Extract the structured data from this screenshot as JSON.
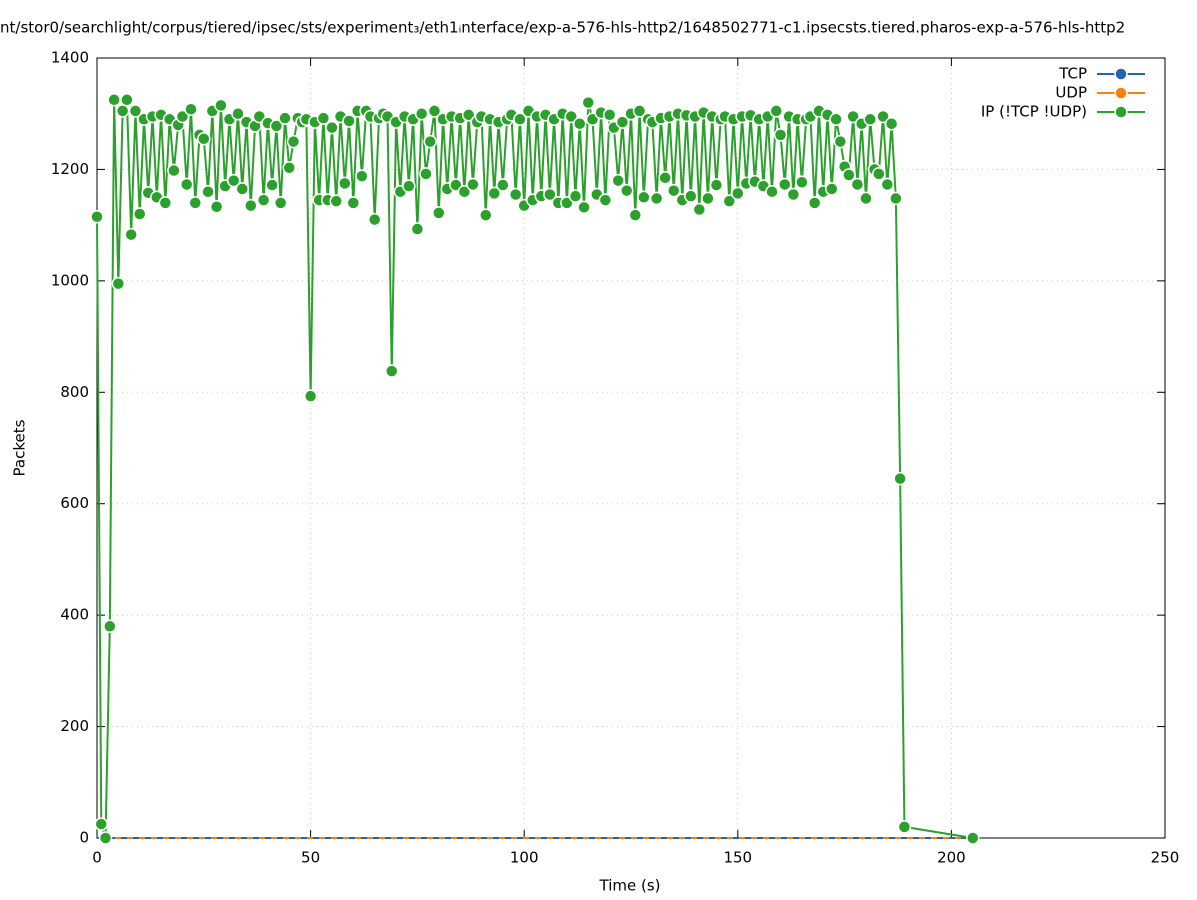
{
  "chart_data": {
    "type": "line",
    "title": "nt/stor0/searchlight/corpus/tiered/ipsec/sts/experiment₃/eth1ᵢnterface/exp-a-576-hls-http2/1648502771-c1.ipsecsts.tiered.pharos-exp-a-576-hls-http2",
    "x_label": "Time (s)",
    "y_label": "Packets",
    "xlim": [
      0,
      250
    ],
    "xticks": [
      0,
      50,
      100,
      150,
      200,
      250
    ],
    "ylim": [
      0,
      1400
    ],
    "yticks": [
      0,
      200,
      400,
      600,
      800,
      1000,
      1200,
      1400
    ],
    "grid": true,
    "legend": "top-right",
    "x": [
      0,
      1,
      2,
      3,
      4,
      5,
      6,
      7,
      8,
      9,
      10,
      11,
      12,
      13,
      14,
      15,
      16,
      17,
      18,
      19,
      20,
      21,
      22,
      23,
      24,
      25,
      26,
      27,
      28,
      29,
      30,
      31,
      32,
      33,
      34,
      35,
      36,
      37,
      38,
      39,
      40,
      41,
      42,
      43,
      44,
      45,
      46,
      47,
      48,
      49,
      50,
      51,
      52,
      53,
      54,
      55,
      56,
      57,
      58,
      59,
      60,
      61,
      62,
      63,
      64,
      65,
      66,
      67,
      68,
      69,
      70,
      71,
      72,
      73,
      74,
      75,
      76,
      77,
      78,
      79,
      80,
      81,
      82,
      83,
      84,
      85,
      86,
      87,
      88,
      89,
      90,
      91,
      92,
      93,
      94,
      95,
      96,
      97,
      98,
      99,
      100,
      101,
      102,
      103,
      104,
      105,
      106,
      107,
      108,
      109,
      110,
      111,
      112,
      113,
      114,
      115,
      116,
      117,
      118,
      119,
      120,
      121,
      122,
      123,
      124,
      125,
      126,
      127,
      128,
      129,
      130,
      131,
      132,
      133,
      134,
      135,
      136,
      137,
      138,
      139,
      140,
      141,
      142,
      143,
      144,
      145,
      146,
      147,
      148,
      149,
      150,
      151,
      152,
      153,
      154,
      155,
      156,
      157,
      158,
      159,
      160,
      161,
      162,
      163,
      164,
      165,
      166,
      167,
      168,
      169,
      170,
      171,
      172,
      173,
      174,
      175,
      176,
      177,
      178,
      179,
      180,
      181,
      182,
      183,
      184,
      185,
      186,
      187,
      188,
      189,
      205
    ],
    "series": [
      {
        "name": "TCP",
        "color": "#1f65b0",
        "values": [
          0,
          0,
          0,
          0,
          0,
          0,
          0,
          0,
          0,
          0,
          0,
          0,
          0,
          0,
          0,
          0,
          0,
          0,
          0,
          0,
          0,
          0,
          0,
          0,
          0,
          0,
          0,
          0,
          0,
          0,
          0,
          0,
          0,
          0,
          0,
          0,
          0,
          0,
          0,
          0,
          0,
          0,
          0,
          0,
          0,
          0,
          0,
          0,
          0,
          0,
          0,
          0,
          0,
          0,
          0,
          0,
          0,
          0,
          0,
          0,
          0,
          0,
          0,
          0,
          0,
          0,
          0,
          0,
          0,
          0,
          0,
          0,
          0,
          0,
          0,
          0,
          0,
          0,
          0,
          0,
          0,
          0,
          0,
          0,
          0,
          0,
          0,
          0,
          0,
          0,
          0,
          0,
          0,
          0,
          0,
          0,
          0,
          0,
          0,
          0,
          0,
          0,
          0,
          0,
          0,
          0,
          0,
          0,
          0,
          0,
          0,
          0,
          0,
          0,
          0,
          0,
          0,
          0,
          0,
          0,
          0,
          0,
          0,
          0,
          0,
          0,
          0,
          0,
          0,
          0,
          0,
          0,
          0,
          0,
          0,
          0,
          0,
          0,
          0,
          0,
          0,
          0,
          0,
          0,
          0,
          0,
          0,
          0,
          0,
          0,
          0,
          0,
          0,
          0,
          0,
          0,
          0,
          0,
          0,
          0,
          0,
          0,
          0,
          0,
          0,
          0,
          0,
          0,
          0,
          0,
          0,
          0,
          0,
          0,
          0,
          0,
          0,
          0,
          0,
          0,
          0,
          0,
          0,
          0,
          0,
          0,
          0,
          0,
          0,
          0,
          0
        ]
      },
      {
        "name": "UDP",
        "color": "#ff7f0e",
        "values": [
          0,
          0,
          0,
          0,
          0,
          0,
          0,
          0,
          0,
          0,
          0,
          0,
          0,
          0,
          0,
          0,
          0,
          0,
          0,
          0,
          0,
          0,
          0,
          0,
          0,
          0,
          0,
          0,
          0,
          0,
          0,
          0,
          0,
          0,
          0,
          0,
          0,
          0,
          0,
          0,
          0,
          0,
          0,
          0,
          0,
          0,
          0,
          0,
          0,
          0,
          0,
          0,
          0,
          0,
          0,
          0,
          0,
          0,
          0,
          0,
          0,
          0,
          0,
          0,
          0,
          0,
          0,
          0,
          0,
          0,
          0,
          0,
          0,
          0,
          0,
          0,
          0,
          0,
          0,
          0,
          0,
          0,
          0,
          0,
          0,
          0,
          0,
          0,
          0,
          0,
          0,
          0,
          0,
          0,
          0,
          0,
          0,
          0,
          0,
          0,
          0,
          0,
          0,
          0,
          0,
          0,
          0,
          0,
          0,
          0,
          0,
          0,
          0,
          0,
          0,
          0,
          0,
          0,
          0,
          0,
          0,
          0,
          0,
          0,
          0,
          0,
          0,
          0,
          0,
          0,
          0,
          0,
          0,
          0,
          0,
          0,
          0,
          0,
          0,
          0,
          0,
          0,
          0,
          0,
          0,
          0,
          0,
          0,
          0,
          0,
          0,
          0,
          0,
          0,
          0,
          0,
          0,
          0,
          0,
          0,
          0,
          0,
          0,
          0,
          0,
          0,
          0,
          0,
          0,
          0,
          0,
          0,
          0,
          0,
          0,
          0,
          0,
          0,
          0,
          0,
          0,
          0,
          0,
          0,
          0,
          0,
          0,
          0,
          0,
          0,
          0
        ]
      },
      {
        "name": "IP (!TCP  !UDP)",
        "color": "#2ca02c",
        "values": [
          1115,
          25,
          0,
          380,
          1325,
          995,
          1305,
          1325,
          1083,
          1305,
          1120,
          1290,
          1158,
          1295,
          1150,
          1298,
          1140,
          1290,
          1198,
          1280,
          1295,
          1173,
          1308,
          1140,
          1262,
          1255,
          1160,
          1305,
          1133,
          1315,
          1170,
          1290,
          1180,
          1300,
          1165,
          1285,
          1135,
          1278,
          1295,
          1145,
          1283,
          1172,
          1278,
          1140,
          1292,
          1203,
          1250,
          1292,
          1285,
          1290,
          793,
          1285,
          1145,
          1292,
          1145,
          1275,
          1143,
          1295,
          1175,
          1287,
          1140,
          1305,
          1188,
          1305,
          1295,
          1110,
          1292,
          1300,
          1295,
          838,
          1285,
          1160,
          1295,
          1170,
          1290,
          1093,
          1300,
          1192,
          1250,
          1305,
          1122,
          1290,
          1165,
          1295,
          1172,
          1292,
          1160,
          1298,
          1173,
          1285,
          1295,
          1118,
          1290,
          1157,
          1285,
          1172,
          1290,
          1298,
          1155,
          1290,
          1135,
          1305,
          1145,
          1295,
          1152,
          1298,
          1155,
          1290,
          1140,
          1300,
          1140,
          1295,
          1152,
          1282,
          1132,
          1320,
          1290,
          1155,
          1302,
          1145,
          1298,
          1275,
          1180,
          1285,
          1162,
          1300,
          1118,
          1305,
          1150,
          1290,
          1285,
          1148,
          1292,
          1185,
          1295,
          1162,
          1300,
          1145,
          1297,
          1152,
          1295,
          1128,
          1302,
          1148,
          1295,
          1172,
          1290,
          1295,
          1143,
          1290,
          1157,
          1295,
          1175,
          1297,
          1178,
          1290,
          1170,
          1295,
          1160,
          1305,
          1262,
          1173,
          1295,
          1155,
          1290,
          1177,
          1290,
          1295,
          1140,
          1305,
          1160,
          1298,
          1165,
          1290,
          1250,
          1205,
          1190,
          1295,
          1173,
          1282,
          1148,
          1290,
          1200,
          1192,
          1295,
          1173,
          1282,
          1148,
          645,
          20,
          0
        ]
      }
    ]
  }
}
